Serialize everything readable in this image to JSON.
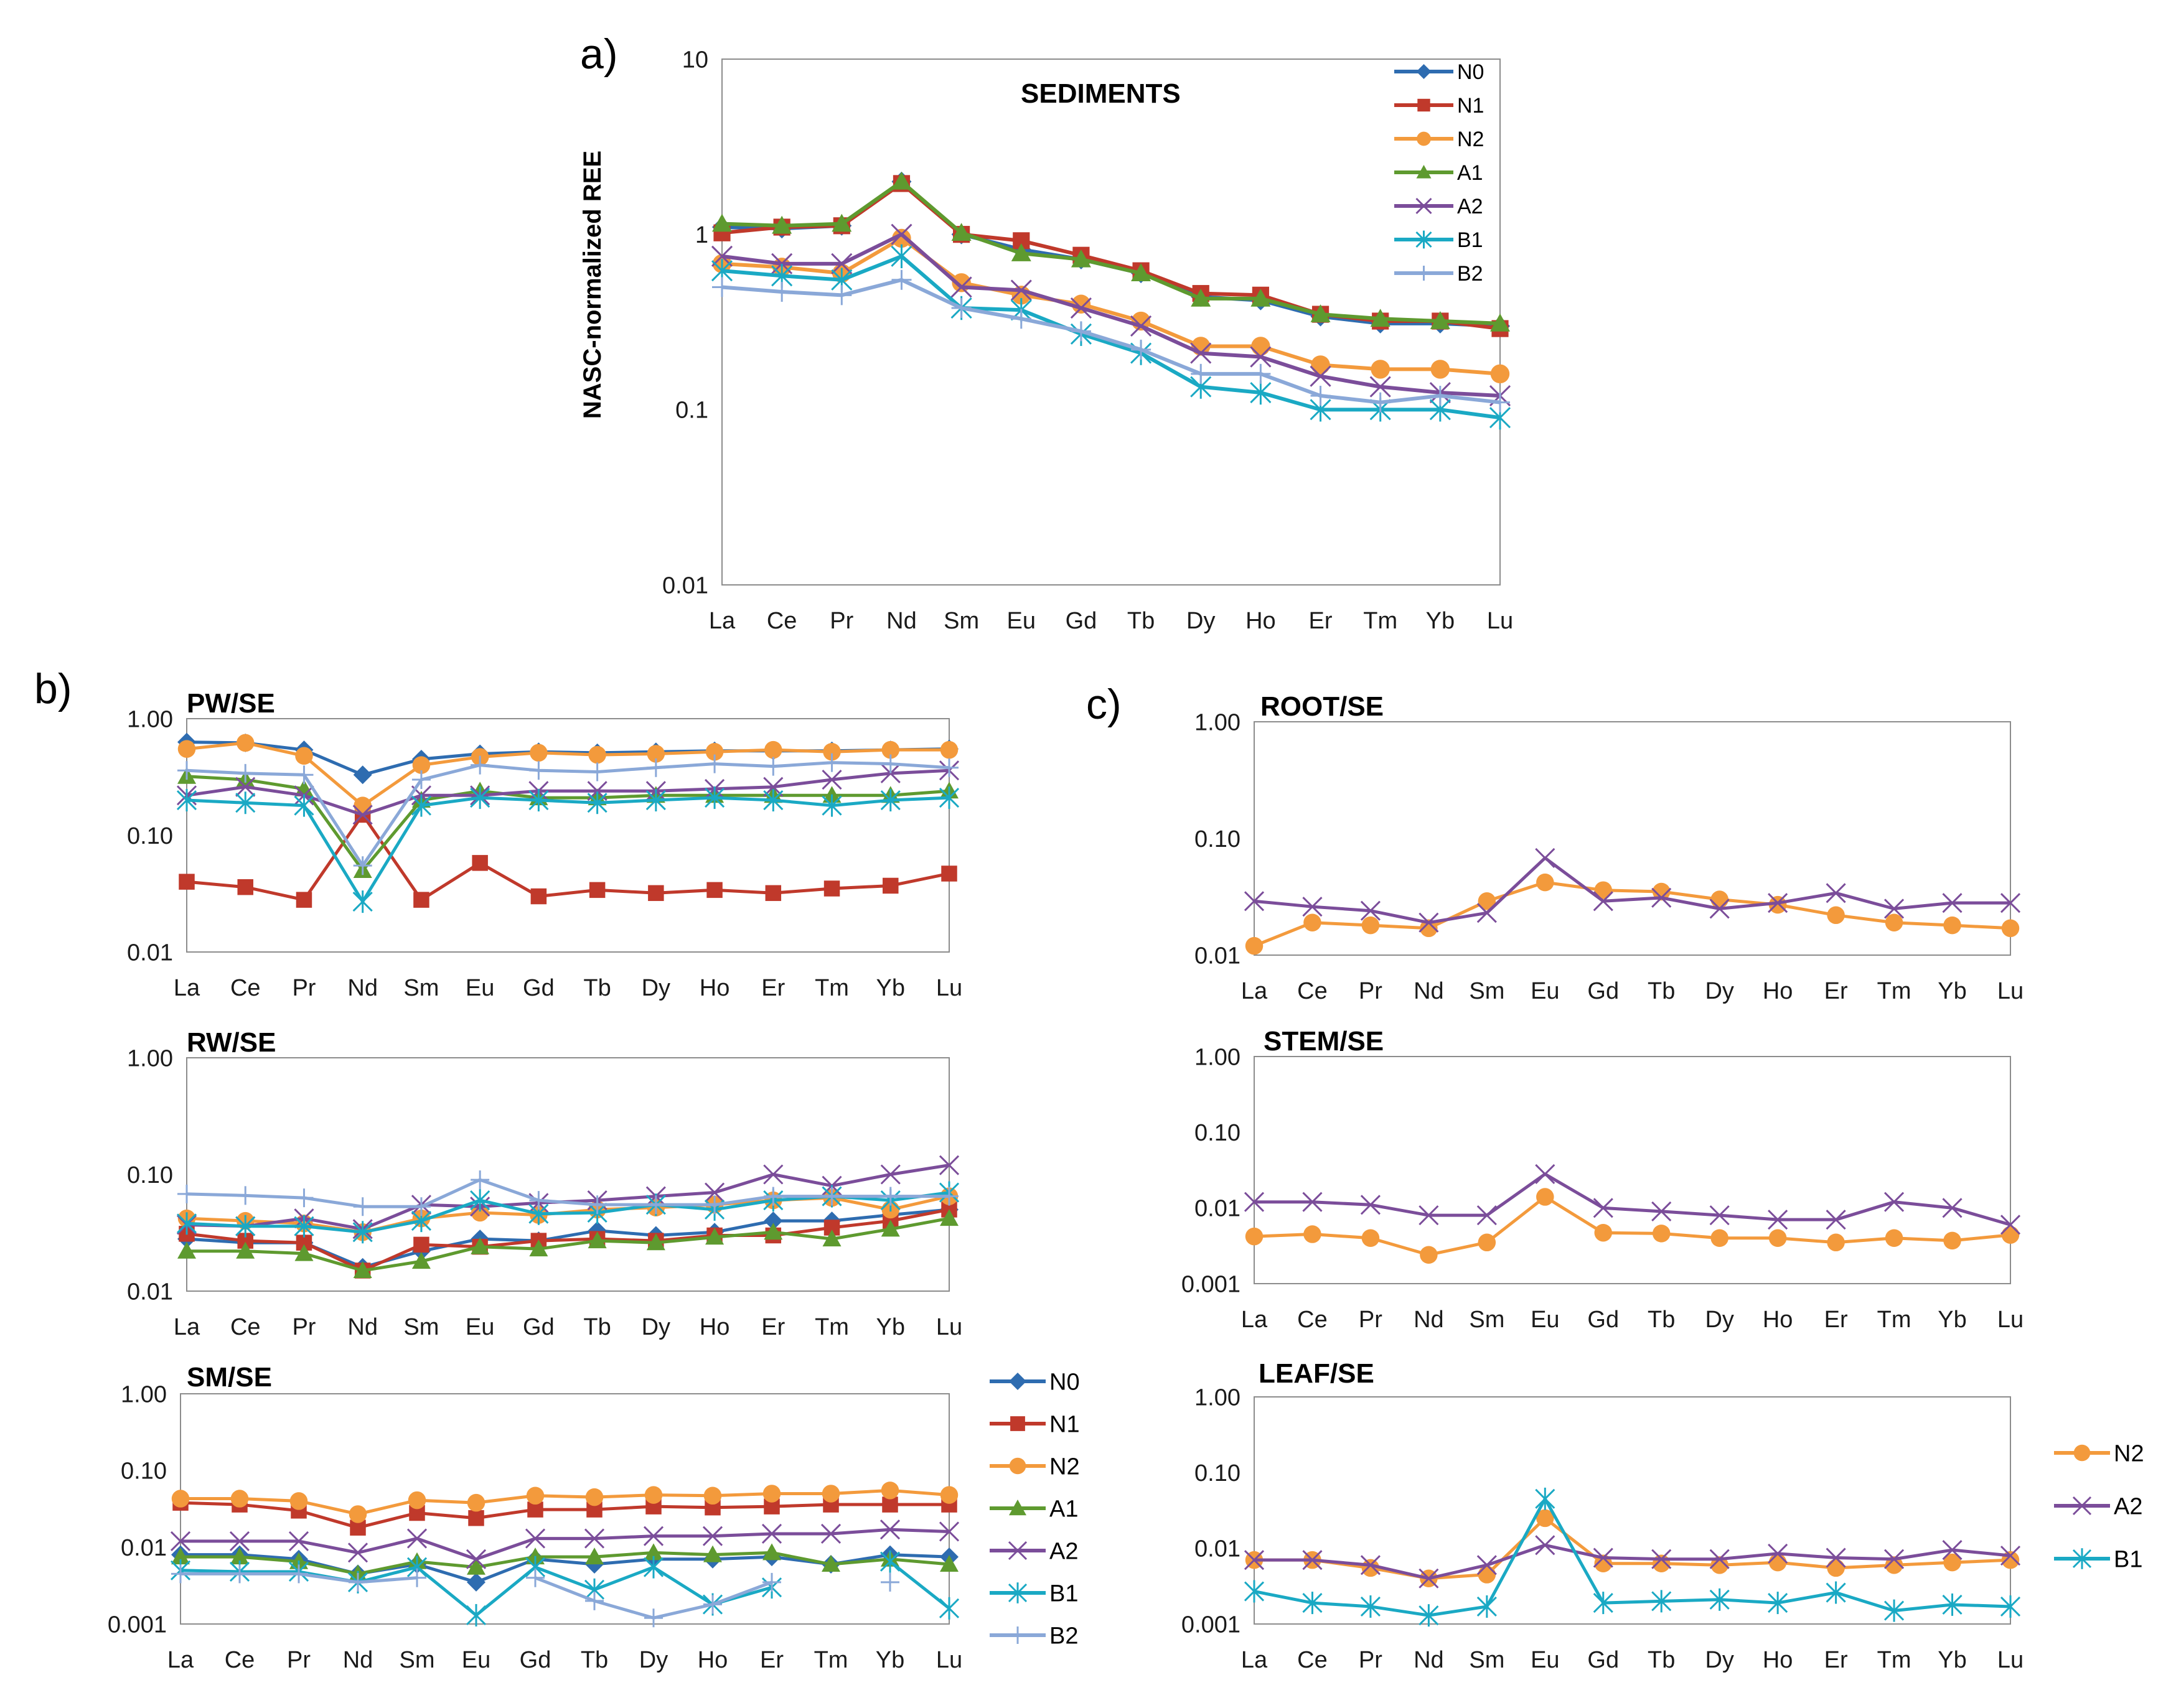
{
  "figure": {
    "panel_labels": [
      "a)",
      "b)",
      "c)"
    ]
  },
  "series_styles": {
    "N0": {
      "color": "#2E6CB0",
      "marker": "diamond"
    },
    "N1": {
      "color": "#C0392B",
      "marker": "square"
    },
    "N2": {
      "color": "#F39A3C",
      "marker": "circle"
    },
    "A1": {
      "color": "#5E9A2F",
      "marker": "triangle"
    },
    "A2": {
      "color": "#7B4D9A",
      "marker": "x"
    },
    "B1": {
      "color": "#1AA9C4",
      "marker": "star"
    },
    "B2": {
      "color": "#8AA8D8",
      "marker": "plus"
    }
  },
  "legends": [
    {
      "panel": "a",
      "entries": [
        "N0",
        "N1",
        "N2",
        "A1",
        "A2",
        "B1",
        "B2"
      ]
    },
    {
      "panel": "b",
      "entries": [
        "N0",
        "N1",
        "N2",
        "A1",
        "A2",
        "B1",
        "B2"
      ]
    },
    {
      "panel": "c",
      "entries": [
        "N2",
        "A2",
        "B1"
      ]
    }
  ],
  "chart_data": [
    {
      "id": "sediments",
      "panel": "a",
      "type": "line",
      "yscale": "log",
      "title": "SEDIMENTS",
      "ylabel": "NASC-normalized REE",
      "xlabel": "",
      "ylim": [
        0.01,
        10
      ],
      "yticks": [
        "0.01",
        "0.1",
        "1",
        "10"
      ],
      "categories": [
        "La",
        "Ce",
        "Pr",
        "Nd",
        "Sm",
        "Eu",
        "Gd",
        "Tb",
        "Dy",
        "Ho",
        "Er",
        "Tm",
        "Yb",
        "Lu"
      ],
      "series": [
        {
          "name": "N0",
          "values": [
            1.1,
            1.08,
            1.12,
            2.0,
            1.0,
            0.82,
            0.72,
            0.6,
            0.44,
            0.42,
            0.34,
            0.31,
            0.31,
            0.3
          ]
        },
        {
          "name": "N1",
          "values": [
            1.02,
            1.1,
            1.12,
            1.95,
            1.0,
            0.92,
            0.76,
            0.62,
            0.46,
            0.45,
            0.35,
            0.32,
            0.32,
            0.29
          ]
        },
        {
          "name": "N2",
          "values": [
            0.68,
            0.65,
            0.6,
            0.95,
            0.53,
            0.45,
            0.4,
            0.32,
            0.23,
            0.23,
            0.18,
            0.17,
            0.17,
            0.16
          ]
        },
        {
          "name": "A1",
          "values": [
            1.15,
            1.12,
            1.15,
            2.0,
            1.02,
            0.78,
            0.72,
            0.6,
            0.43,
            0.43,
            0.35,
            0.33,
            0.32,
            0.31
          ]
        },
        {
          "name": "A2",
          "values": [
            0.75,
            0.68,
            0.68,
            1.0,
            0.5,
            0.48,
            0.38,
            0.3,
            0.21,
            0.2,
            0.155,
            0.135,
            0.125,
            0.12
          ]
        },
        {
          "name": "B1",
          "values": [
            0.62,
            0.58,
            0.55,
            0.75,
            0.38,
            0.37,
            0.27,
            0.21,
            0.135,
            0.125,
            0.1,
            0.1,
            0.1,
            0.09
          ]
        },
        {
          "name": "B2",
          "values": [
            0.5,
            0.47,
            0.45,
            0.55,
            0.38,
            0.33,
            0.28,
            0.22,
            0.16,
            0.16,
            0.12,
            0.11,
            0.12,
            0.11
          ]
        }
      ]
    },
    {
      "id": "pw-se",
      "panel": "b",
      "type": "line",
      "yscale": "log",
      "title": "PW/SE",
      "ylim": [
        0.01,
        1
      ],
      "yticks": [
        "0.01",
        "0.10",
        "1.00"
      ],
      "categories": [
        "La",
        "Ce",
        "Pr",
        "Nd",
        "Sm",
        "Eu",
        "Gd",
        "Tb",
        "Dy",
        "Ho",
        "Er",
        "Tm",
        "Yb",
        "Lu"
      ],
      "series": [
        {
          "name": "N0",
          "values": [
            0.63,
            0.62,
            0.54,
            0.33,
            0.45,
            0.5,
            0.52,
            0.51,
            0.52,
            0.53,
            0.53,
            0.53,
            0.54,
            0.55
          ]
        },
        {
          "name": "N1",
          "values": [
            0.04,
            0.036,
            0.028,
            0.15,
            0.028,
            0.058,
            0.03,
            0.034,
            0.032,
            0.034,
            0.032,
            0.035,
            0.037,
            0.047
          ]
        },
        {
          "name": "N2",
          "values": [
            0.55,
            0.62,
            0.48,
            0.18,
            0.4,
            0.47,
            0.51,
            0.49,
            0.5,
            0.52,
            0.54,
            0.52,
            0.54,
            0.54
          ]
        },
        {
          "name": "A1",
          "values": [
            0.32,
            0.3,
            0.25,
            0.05,
            0.2,
            0.24,
            0.21,
            0.21,
            0.22,
            0.22,
            0.22,
            0.22,
            0.22,
            0.24
          ]
        },
        {
          "name": "A2",
          "values": [
            0.22,
            0.26,
            0.22,
            0.15,
            0.22,
            0.22,
            0.24,
            0.24,
            0.24,
            0.25,
            0.26,
            0.3,
            0.34,
            0.36
          ]
        },
        {
          "name": "B1",
          "values": [
            0.2,
            0.19,
            0.18,
            0.027,
            0.18,
            0.21,
            0.2,
            0.19,
            0.2,
            0.21,
            0.2,
            0.18,
            0.2,
            0.21
          ]
        },
        {
          "name": "B2",
          "values": [
            0.36,
            0.34,
            0.33,
            0.055,
            0.3,
            0.4,
            0.36,
            0.35,
            0.38,
            0.41,
            0.39,
            0.42,
            0.41,
            0.38
          ]
        }
      ]
    },
    {
      "id": "rw-se",
      "panel": "b",
      "type": "line",
      "yscale": "log",
      "title": "RW/SE",
      "ylim": [
        0.01,
        1
      ],
      "yticks": [
        "0.01",
        "0.10",
        "1.00"
      ],
      "categories": [
        "La",
        "Ce",
        "Pr",
        "Nd",
        "Sm",
        "Eu",
        "Gd",
        "Tb",
        "Dy",
        "Ho",
        "Er",
        "Tm",
        "Yb",
        "Lu"
      ],
      "series": [
        {
          "name": "N0",
          "values": [
            0.028,
            0.026,
            0.026,
            0.016,
            0.022,
            0.028,
            0.027,
            0.033,
            0.03,
            0.032,
            0.04,
            0.04,
            0.045,
            0.05
          ]
        },
        {
          "name": "N1",
          "values": [
            0.031,
            0.027,
            0.026,
            0.015,
            0.025,
            0.024,
            0.027,
            0.028,
            0.027,
            0.03,
            0.03,
            0.035,
            0.04,
            0.05
          ]
        },
        {
          "name": "N2",
          "values": [
            0.042,
            0.04,
            0.038,
            0.032,
            0.042,
            0.047,
            0.045,
            0.05,
            0.052,
            0.055,
            0.06,
            0.063,
            0.05,
            0.065
          ]
        },
        {
          "name": "A1",
          "values": [
            0.022,
            0.022,
            0.021,
            0.015,
            0.018,
            0.024,
            0.023,
            0.027,
            0.026,
            0.029,
            0.032,
            0.028,
            0.034,
            0.042
          ]
        },
        {
          "name": "A2",
          "values": [
            0.037,
            0.036,
            0.042,
            0.034,
            0.055,
            0.053,
            0.057,
            0.06,
            0.065,
            0.07,
            0.1,
            0.08,
            0.1,
            0.12
          ]
        },
        {
          "name": "B1",
          "values": [
            0.038,
            0.036,
            0.036,
            0.032,
            0.04,
            0.06,
            0.046,
            0.047,
            0.055,
            0.05,
            0.06,
            0.065,
            0.06,
            0.07
          ]
        },
        {
          "name": "B2",
          "values": [
            0.068,
            0.066,
            0.063,
            0.053,
            0.053,
            0.09,
            0.06,
            0.055,
            0.055,
            0.055,
            0.065,
            0.065,
            0.065,
            0.065
          ]
        }
      ]
    },
    {
      "id": "sm-se",
      "panel": "b",
      "type": "line",
      "yscale": "log",
      "title": "SM/SE",
      "ylim": [
        0.001,
        1
      ],
      "yticks": [
        "0.001",
        "0.01",
        "0.10",
        "1.00"
      ],
      "categories": [
        "La",
        "Ce",
        "Pr",
        "Nd",
        "Sm",
        "Eu",
        "Gd",
        "Tb",
        "Dy",
        "Ho",
        "Er",
        "Tm",
        "Yb",
        "Lu"
      ],
      "series": [
        {
          "name": "N0",
          "values": [
            0.008,
            0.008,
            0.007,
            0.0045,
            0.006,
            0.0035,
            0.007,
            0.006,
            0.007,
            0.007,
            0.0075,
            0.006,
            0.008,
            0.0075
          ]
        },
        {
          "name": "N1",
          "values": [
            0.038,
            0.036,
            0.03,
            0.018,
            0.028,
            0.024,
            0.031,
            0.031,
            0.034,
            0.033,
            0.034,
            0.036,
            0.036,
            0.036
          ]
        },
        {
          "name": "N2",
          "values": [
            0.043,
            0.043,
            0.04,
            0.027,
            0.041,
            0.038,
            0.047,
            0.045,
            0.048,
            0.047,
            0.05,
            0.05,
            0.055,
            0.048
          ]
        },
        {
          "name": "A1",
          "values": [
            0.0075,
            0.0075,
            0.0065,
            0.0045,
            0.0065,
            0.0055,
            0.0075,
            0.0075,
            0.0085,
            0.008,
            0.0085,
            0.006,
            0.007,
            0.006
          ]
        },
        {
          "name": "A2",
          "values": [
            0.012,
            0.012,
            0.012,
            0.0085,
            0.013,
            0.007,
            0.013,
            0.013,
            0.014,
            0.014,
            0.015,
            0.015,
            0.017,
            0.016
          ]
        },
        {
          "name": "B1",
          "values": [
            0.005,
            0.0048,
            0.0048,
            0.0035,
            0.0055,
            0.0013,
            0.0055,
            0.0028,
            0.0055,
            0.0018,
            0.003,
            null,
            0.0065,
            0.0016
          ]
        },
        {
          "name": "B2",
          "values": [
            0.0045,
            0.0045,
            0.0045,
            0.0035,
            0.004,
            null,
            0.004,
            0.002,
            0.0012,
            0.0018,
            0.0035,
            null,
            0.0035,
            null
          ]
        }
      ]
    },
    {
      "id": "root-se",
      "panel": "c",
      "type": "line",
      "yscale": "log",
      "title": "ROOT/SE",
      "ylim": [
        0.01,
        1
      ],
      "yticks": [
        "0.01",
        "0.10",
        "1.00"
      ],
      "categories": [
        "La",
        "Ce",
        "Pr",
        "Nd",
        "Sm",
        "Eu",
        "Gd",
        "Tb",
        "Dy",
        "Ho",
        "Er",
        "Tm",
        "Yb",
        "Lu"
      ],
      "series": [
        {
          "name": "N2",
          "values": [
            0.012,
            0.019,
            0.018,
            0.017,
            0.029,
            0.042,
            0.036,
            0.035,
            0.03,
            0.027,
            0.022,
            0.019,
            0.018,
            0.017
          ]
        },
        {
          "name": "A2",
          "values": [
            0.029,
            0.026,
            0.024,
            0.019,
            0.023,
            0.068,
            0.029,
            0.031,
            0.025,
            0.028,
            0.034,
            0.025,
            0.028,
            0.028
          ]
        }
      ]
    },
    {
      "id": "stem-se",
      "panel": "c",
      "type": "line",
      "yscale": "log",
      "title": "STEM/SE",
      "ylim": [
        0.001,
        1
      ],
      "yticks": [
        "0.001",
        "0.01",
        "0.10",
        "1.00"
      ],
      "categories": [
        "La",
        "Ce",
        "Pr",
        "Nd",
        "Sm",
        "Eu",
        "Gd",
        "Tb",
        "Dy",
        "Ho",
        "Er",
        "Tm",
        "Yb",
        "Lu"
      ],
      "series": [
        {
          "name": "N2",
          "values": [
            0.0042,
            0.0045,
            0.004,
            0.0024,
            0.0035,
            0.014,
            0.0047,
            0.0046,
            0.004,
            0.004,
            0.0035,
            0.004,
            0.0037,
            0.0044
          ]
        },
        {
          "name": "A2",
          "values": [
            0.012,
            0.012,
            0.011,
            0.008,
            0.008,
            0.028,
            0.01,
            0.009,
            0.008,
            0.007,
            0.007,
            0.012,
            0.01,
            0.006
          ]
        }
      ]
    },
    {
      "id": "leaf-se",
      "panel": "c",
      "type": "line",
      "yscale": "log",
      "title": "LEAF/SE",
      "ylim": [
        0.001,
        1
      ],
      "yticks": [
        "0.001",
        "0.01",
        "0.10",
        "1.00"
      ],
      "categories": [
        "La",
        "Ce",
        "Pr",
        "Nd",
        "Sm",
        "Eu",
        "Gd",
        "Tb",
        "Dy",
        "Ho",
        "Er",
        "Tm",
        "Yb",
        "Lu"
      ],
      "series": [
        {
          "name": "N2",
          "values": [
            0.007,
            0.007,
            0.0055,
            0.004,
            0.0045,
            0.025,
            0.0063,
            0.0063,
            0.006,
            0.0065,
            0.0055,
            0.006,
            0.0065,
            0.007
          ]
        },
        {
          "name": "A2",
          "values": [
            0.007,
            0.007,
            0.006,
            0.004,
            0.006,
            0.011,
            0.0075,
            0.0072,
            0.0072,
            0.0085,
            0.0075,
            0.0072,
            0.0095,
            0.008
          ]
        },
        {
          "name": "B1",
          "values": [
            0.0027,
            0.0019,
            0.0017,
            0.0013,
            0.0017,
            0.045,
            0.0019,
            0.002,
            0.0021,
            0.0019,
            0.0026,
            0.0015,
            0.0018,
            0.0017
          ]
        }
      ]
    }
  ]
}
